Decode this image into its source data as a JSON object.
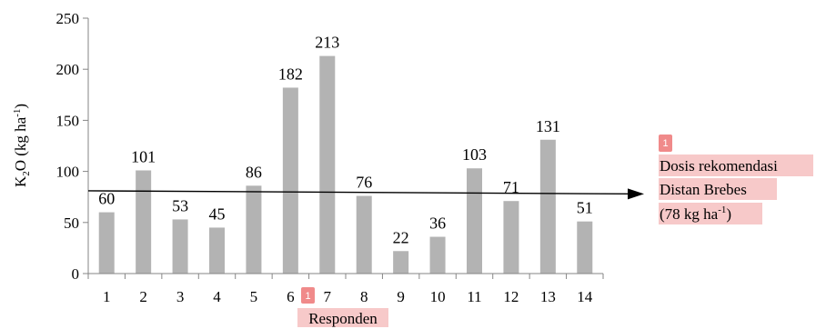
{
  "chart_data": {
    "type": "bar",
    "title": "",
    "xlabel": "Responden",
    "ylabel": {
      "main": "K",
      "sub": "2",
      "rest": "O (kg ha",
      "sup": "-1",
      "close": ")"
    },
    "categories": [
      "1",
      "2",
      "3",
      "4",
      "5",
      "6",
      "7",
      "8",
      "9",
      "10",
      "11",
      "12",
      "13",
      "14"
    ],
    "values": [
      60,
      101,
      53,
      45,
      86,
      182,
      213,
      76,
      22,
      36,
      103,
      71,
      131,
      51
    ],
    "data_labels": [
      "60",
      "101",
      "53",
      "45",
      "86",
      "182",
      "213",
      "76",
      "22",
      "36",
      "103",
      "71",
      "131",
      "51"
    ],
    "ylim": [
      0,
      250
    ],
    "yticks": [
      "0",
      "50",
      "100",
      "150",
      "200",
      "250"
    ],
    "ytick_values": [
      0,
      50,
      100,
      150,
      200,
      250
    ],
    "grid": false,
    "bar_color": "#b3b3b3",
    "reference_line": {
      "value": 78,
      "start_value": 81,
      "label_line1": "Dosis rekomendasi",
      "label_line2": "Distan Brebes",
      "label_line3_main": "(78 kg ha",
      "label_line3_sup": "-1",
      "label_line3_close": ")"
    },
    "annotation_badges": [
      "1",
      "1"
    ],
    "highlight_color": "#f7c9c9",
    "badge_color": "#f08a8a"
  }
}
